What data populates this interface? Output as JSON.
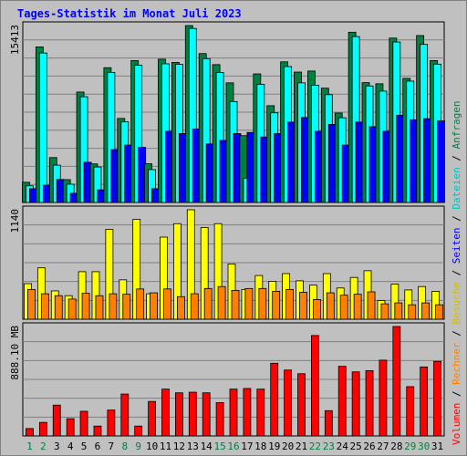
{
  "chart_data": {
    "type": "bar",
    "title": "Tages-Statistik im Monat Juli 2023",
    "categories": [
      "1",
      "2",
      "3",
      "4",
      "5",
      "6",
      "7",
      "8",
      "9",
      "10",
      "11",
      "12",
      "13",
      "14",
      "15",
      "16",
      "17",
      "18",
      "19",
      "20",
      "21",
      "22",
      "23",
      "24",
      "25",
      "26",
      "27",
      "28",
      "29",
      "30",
      "31"
    ],
    "weekend_days": [
      1,
      2,
      8,
      9,
      15,
      16,
      22,
      23,
      29,
      30
    ],
    "panels": [
      {
        "id": "requests",
        "axis_label": "15413",
        "ylim": [
          0,
          15413
        ],
        "series": [
          {
            "name": "Anfragen",
            "color": "#008040",
            "values": [
              1760,
              13550,
              3910,
              1990,
              9620,
              3360,
              11740,
              7320,
              12360,
              3370,
              12480,
              12200,
              15410,
              12970,
              12010,
              10420,
              5820,
              11200,
              8430,
              12250,
              11360,
              11450,
              9960,
              7790,
              14830,
              10440,
              10340,
              14320,
              10810,
              14540,
              12360
            ]
          },
          {
            "name": "Dateien",
            "color": "#00ffff",
            "values": [
              1450,
              13020,
              3250,
              1590,
              9210,
              3090,
              11330,
              7020,
              11950,
              2860,
              12080,
              12040,
              15160,
              12530,
              11320,
              8790,
              2110,
              10290,
              7810,
              11840,
              10420,
              10210,
              9390,
              7380,
              14450,
              10150,
              9700,
              13980,
              10570,
              13770,
              12050
            ]
          },
          {
            "name": "Seiten",
            "color": "#0000ff",
            "values": [
              1200,
              1500,
              2000,
              800,
              3500,
              1100,
              4600,
              5000,
              4800,
              1200,
              6200,
              6000,
              6400,
              5100,
              5400,
              6000,
              6100,
              5700,
              6000,
              7000,
              7400,
              6200,
              6800,
              5000,
              7000,
              6600,
              6200,
              7600,
              7200,
              7300,
              7100
            ]
          }
        ]
      },
      {
        "id": "visits",
        "axis_label": "1140",
        "ylim": [
          0,
          1140
        ],
        "series": [
          {
            "name": "Besuche",
            "color": "#ffff00",
            "values": [
              370,
              535,
              295,
              245,
              495,
              495,
              935,
              410,
              1040,
              265,
              855,
              995,
              1140,
              955,
              995,
              575,
              310,
              455,
              395,
              475,
              400,
              355,
              475,
              325,
              435,
              505,
              195,
              365,
              305,
              340,
              290
            ]
          },
          {
            "name": "Rechner",
            "color": "#ff8000",
            "values": [
              310,
              265,
              245,
              210,
              270,
              245,
              265,
              260,
              315,
              275,
              315,
              235,
              265,
              320,
              340,
              300,
              320,
              320,
              290,
              310,
              280,
              205,
              275,
              250,
              260,
              285,
              160,
              170,
              150,
              170,
              150
            ]
          }
        ]
      },
      {
        "id": "volume",
        "axis_label": "888.10 MB",
        "ylim": [
          0,
          888.1
        ],
        "series": [
          {
            "name": "Volumen",
            "color": "#ff0000",
            "values": [
              60,
              110,
              250,
              140,
              200,
              80,
              210,
              340,
              80,
              280,
              380,
              350,
              355,
              350,
              270,
              380,
              385,
              380,
              590,
              535,
              505,
              815,
              205,
              565,
              520,
              530,
              615,
              888,
              400,
              560,
              605
            ]
          }
        ]
      }
    ],
    "legend_sep": " / ",
    "legend_placement": "right-vertical"
  }
}
